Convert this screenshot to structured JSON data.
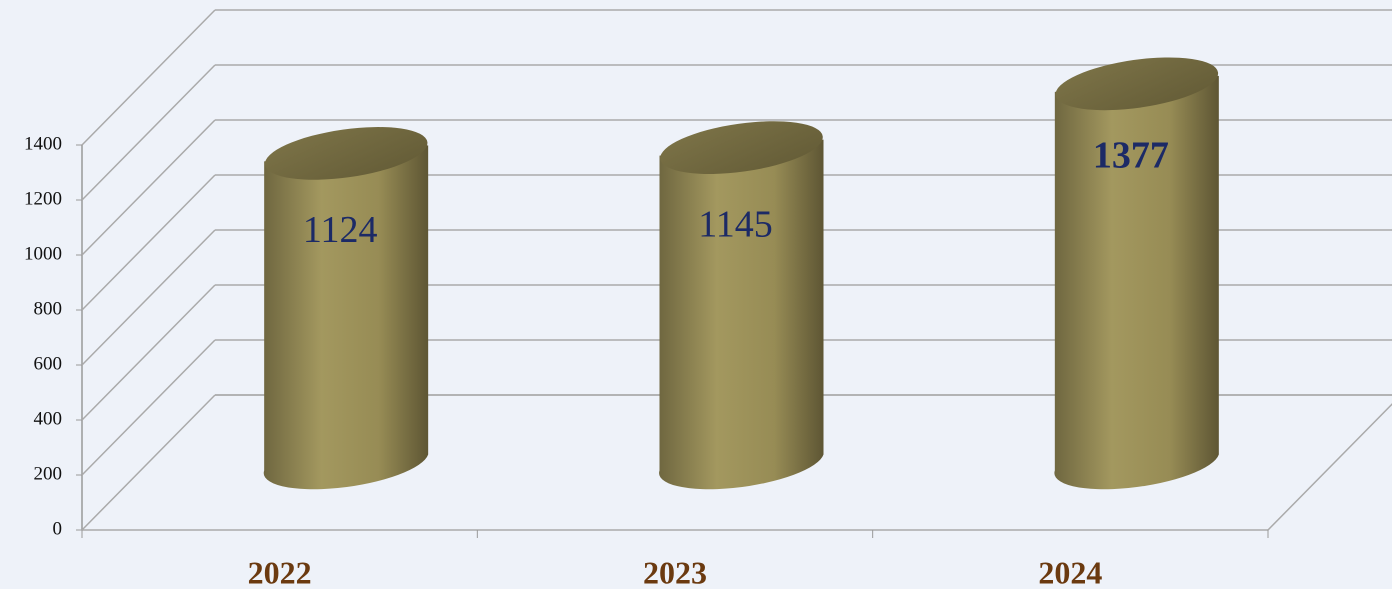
{
  "chart_data": {
    "type": "cylinder",
    "categories": [
      "2022",
      "2023",
      "2024"
    ],
    "values": [
      1124,
      1145,
      1377
    ],
    "value_labels_bold": [
      false,
      false,
      true
    ],
    "color": "#9a8f58",
    "ylim": [
      0,
      1400
    ],
    "yticks": [
      0,
      200,
      400,
      600,
      800,
      1000,
      1200,
      1400
    ],
    "grid": true
  }
}
